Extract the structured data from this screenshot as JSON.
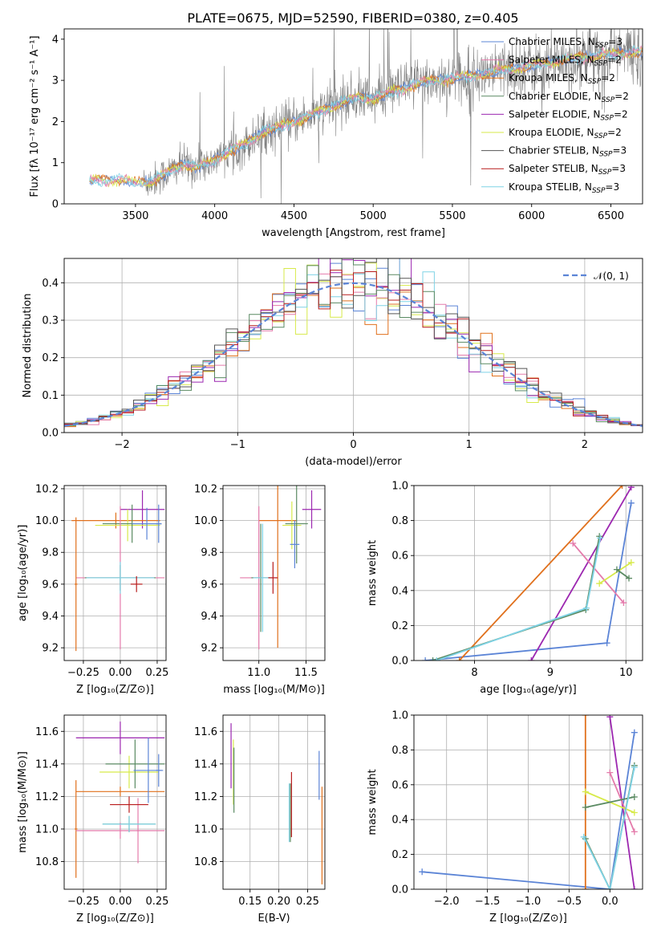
{
  "figure": {
    "title": "PLATE=0675, MJD=52590, FIBERID=0380, z=0.405"
  },
  "chart_data": [
    {
      "id": "spectrum",
      "type": "line",
      "title": "PLATE=0675, MJD=52590, FIBERID=0380, z=0.405",
      "xlabel": "wavelength [Angstrom, rest frame]",
      "ylabel": "Flux [fλ 10⁻¹⁷ erg cm⁻² s⁻¹ A⁻¹]",
      "xlim": [
        3050,
        6700
      ],
      "ylim": [
        0,
        4.25
      ],
      "xticks": [
        3500,
        4000,
        4500,
        5000,
        5500,
        6000,
        6500
      ],
      "yticks": [
        0,
        1,
        2,
        3,
        4
      ],
      "grid": false,
      "legend_position": "top-right",
      "legend": [
        {
          "label": "Chabrier MILES, N",
          "sub": "SSP",
          "suffix": "=3",
          "color": "#5b84d6"
        },
        {
          "label": "Salpeter MILES, N",
          "sub": "SSP",
          "suffix": "=2",
          "color": "#e47bab"
        },
        {
          "label": "Kroupa MILES, N",
          "sub": "SSP",
          "suffix": "=2",
          "color": "#e0701c"
        },
        {
          "label": "Chabrier ELODIE, N",
          "sub": "SSP",
          "suffix": "=2",
          "color": "#5a8a62"
        },
        {
          "label": "Salpeter ELODIE, N",
          "sub": "SSP",
          "suffix": "=2",
          "color": "#9c27b0"
        },
        {
          "label": "Kroupa ELODIE, N",
          "sub": "SSP",
          "suffix": "=2",
          "color": "#d7ea4a"
        },
        {
          "label": "Chabrier STELIB, N",
          "sub": "SSP",
          "suffix": "=3",
          "color": "#555555"
        },
        {
          "label": "Salpeter STELIB, N",
          "sub": "SSP",
          "suffix": "=3",
          "color": "#b81c1c"
        },
        {
          "label": "Kroupa STELIB, N",
          "sub": "SSP",
          "suffix": "=3",
          "color": "#7fd3e6"
        }
      ],
      "data_color": "#808080",
      "data_xrange": [
        3550,
        6700
      ],
      "model_colors": [
        "#5b84d6",
        "#e0701c",
        "#d7ea4a",
        "#e47bab",
        "#7fd3e6"
      ],
      "model_xrange": [
        3210,
        6700
      ],
      "trend": {
        "x": [
          3210,
          3400,
          3500,
          3600,
          3700,
          3800,
          3900,
          4000,
          4100,
          4200,
          4300,
          4400,
          4500,
          4600,
          4700,
          4800,
          4900,
          5000,
          5100,
          5200,
          5300,
          5400,
          5500,
          5600,
          5700,
          5800,
          5900,
          6000,
          6200,
          6400,
          6700
        ],
        "y": [
          0.55,
          0.6,
          0.5,
          0.55,
          0.75,
          0.95,
          0.9,
          1.05,
          1.3,
          1.45,
          1.75,
          1.85,
          2.0,
          2.15,
          2.3,
          2.45,
          2.6,
          2.55,
          2.7,
          2.8,
          2.95,
          3.0,
          3.05,
          3.1,
          3.15,
          3.25,
          3.3,
          3.35,
          3.5,
          3.6,
          3.7
        ]
      }
    },
    {
      "id": "residuals",
      "type": "step",
      "xlabel": "(data-model)/error",
      "ylabel": "Normed distribution",
      "xlim": [
        -2.5,
        2.5
      ],
      "ylim": [
        0,
        0.465
      ],
      "xticks": [
        -2,
        -1,
        0,
        1,
        2
      ],
      "yticks": [
        0.0,
        0.1,
        0.2,
        0.3,
        0.4
      ],
      "grid": true,
      "legend_position": "top-right",
      "legend": [
        {
          "label": "𝒩(0, 1)",
          "color": "#5b84d6"
        }
      ],
      "normal": {
        "mu": 0,
        "sigma": 1
      },
      "series_colors": [
        "#5b84d6",
        "#e0701c",
        "#d7ea4a",
        "#e47bab",
        "#9c27b0",
        "#7fd3e6",
        "#5a8a62",
        "#b81c1c",
        "#555555"
      ],
      "bin_width": 0.1
    },
    {
      "id": "age-vs-Z",
      "type": "errorbar",
      "xlabel": "Z [log₁₀(Z/Z⊙)]",
      "ylabel": "age  [log₁₀(age/yr)]",
      "xlim": [
        -0.38,
        0.31
      ],
      "ylim": [
        9.12,
        10.22
      ],
      "xticks": [
        -0.25,
        0.0,
        0.25
      ],
      "xticklabels": [
        "−0.25",
        "0.00",
        "0.25"
      ],
      "yticks": [
        9.2,
        9.4,
        9.6,
        9.8,
        10.0,
        10.2
      ],
      "yticklabels": [
        "9.2",
        "9.4",
        "9.6",
        "9.8",
        "10.0",
        "10.2"
      ],
      "grid": true,
      "points": [
        {
          "x": 0.15,
          "y": 10.07,
          "xerr": 0.15,
          "yerr": 0.12,
          "color": "#9c27b0"
        },
        {
          "x": -0.03,
          "y": 10.0,
          "xerr": 0.3,
          "yerr": 0.05,
          "color": "#e0701c"
        },
        {
          "x": 0.05,
          "y": 9.97,
          "xerr": 0.22,
          "yerr": 0.1,
          "color": "#d7ea4a"
        },
        {
          "x": 0.08,
          "y": 9.98,
          "xerr": 0.2,
          "yerr": 0.12,
          "color": "#5a8a62"
        },
        {
          "x": 0.0,
          "y": 9.64,
          "xerr": 0.3,
          "yerr": 0.45,
          "color": "#e47bab"
        },
        {
          "x": 0.0,
          "y": 9.64,
          "xerr": 0.24,
          "yerr": 0.08,
          "color": "#5a8a62"
        },
        {
          "x": 0.0,
          "y": 9.64,
          "xerr": 0.23,
          "yerr": 0.1,
          "color": "#7fd3e6"
        },
        {
          "x": 0.18,
          "y": 9.98,
          "xerr": 0.1,
          "yerr": 0.1,
          "color": "#5b84d6"
        },
        {
          "x": 0.26,
          "y": 9.98,
          "xerr": 0.02,
          "yerr": 0.12,
          "color": "#5b84d6"
        },
        {
          "x": 0.11,
          "y": 9.6,
          "xerr": 0.04,
          "yerr": 0.05,
          "color": "#b81c1c"
        },
        {
          "x": -0.3,
          "y": 9.6,
          "xerr": 0.01,
          "yerr": 0.42,
          "color": "#e0701c"
        }
      ]
    },
    {
      "id": "age-vs-mass",
      "type": "errorbar",
      "xlabel": "mass [log₁₀(M/M⊙)]",
      "ylabel": "",
      "xlim": [
        10.62,
        11.7
      ],
      "ylim": [
        9.12,
        10.22
      ],
      "xticks": [
        11.0,
        11.5
      ],
      "xticklabels": [
        "11.0",
        "11.5"
      ],
      "yticks": [
        9.2,
        9.4,
        9.6,
        9.8,
        10.0,
        10.2
      ],
      "yticklabels": [
        "9.2",
        "9.4",
        "9.6",
        "9.8",
        "10.0",
        "10.2"
      ],
      "grid": true,
      "points": [
        {
          "x": 11.56,
          "y": 10.07,
          "xerr": 0.1,
          "yerr": 0.12,
          "color": "#9c27b0"
        },
        {
          "x": 11.2,
          "y": 10.0,
          "xerr": 0.2,
          "yerr": 0.8,
          "color": "#e0701c"
        },
        {
          "x": 11.35,
          "y": 9.97,
          "xerr": 0.1,
          "yerr": 0.15,
          "color": "#d7ea4a"
        },
        {
          "x": 11.4,
          "y": 9.98,
          "xerr": 0.12,
          "yerr": 0.25,
          "color": "#5a8a62"
        },
        {
          "x": 11.0,
          "y": 9.64,
          "xerr": 0.2,
          "yerr": 0.45,
          "color": "#e47bab"
        },
        {
          "x": 11.02,
          "y": 9.64,
          "xerr": 0.1,
          "yerr": 0.34,
          "color": "#5a8a62"
        },
        {
          "x": 11.04,
          "y": 9.64,
          "xerr": 0.1,
          "yerr": 0.34,
          "color": "#7fd3e6"
        },
        {
          "x": 11.15,
          "y": 9.64,
          "xerr": 0.05,
          "yerr": 0.1,
          "color": "#b81c1c"
        },
        {
          "x": 11.38,
          "y": 9.85,
          "xerr": 0.05,
          "yerr": 0.15,
          "color": "#5b84d6"
        }
      ]
    },
    {
      "id": "weight-vs-age",
      "type": "line",
      "xlabel": "age  [log₁₀(age/yr)]",
      "ylabel": "mass weight",
      "xlim": [
        7.2,
        10.22
      ],
      "ylim": [
        0,
        1.0
      ],
      "xticks": [
        8,
        9,
        10
      ],
      "xticklabels": [
        "8",
        "9",
        "10"
      ],
      "yticks": [
        0.0,
        0.2,
        0.4,
        0.6,
        0.8,
        1.0
      ],
      "yticklabels": [
        "0.0",
        "0.2",
        "0.4",
        "0.6",
        "0.8",
        "1.0"
      ],
      "grid": true,
      "series": [
        {
          "x": [
            7.35,
            9.75,
            10.07
          ],
          "y": [
            0.0,
            0.1,
            0.9
          ],
          "color": "#5b84d6"
        },
        {
          "x": [
            7.8,
            9.95
          ],
          "y": [
            0.0,
            1.0
          ],
          "color": "#e0701c"
        },
        {
          "x": [
            8.75,
            10.07
          ],
          "y": [
            0.0,
            0.99
          ],
          "color": "#9c27b0"
        },
        {
          "x": [
            9.3,
            9.97
          ],
          "y": [
            0.67,
            0.33
          ],
          "color": "#e47bab"
        },
        {
          "x": [
            9.65,
            10.07
          ],
          "y": [
            0.44,
            0.56
          ],
          "color": "#d7ea4a"
        },
        {
          "x": [
            9.88,
            10.04
          ],
          "y": [
            0.52,
            0.47
          ],
          "color": "#5a8a62"
        },
        {
          "x": [
            7.45,
            9.47,
            9.65
          ],
          "y": [
            0.0,
            0.29,
            0.71
          ],
          "color": "#5a8a62"
        },
        {
          "x": [
            7.5,
            9.48,
            9.66
          ],
          "y": [
            0.0,
            0.3,
            0.7
          ],
          "color": "#7fd3e6"
        }
      ]
    },
    {
      "id": "mass-vs-Z",
      "type": "errorbar",
      "xlabel": "Z [log₁₀(Z/Z⊙)]",
      "ylabel": "mass [log₁₀(M/M⊙)]",
      "xlim": [
        -0.38,
        0.31
      ],
      "ylim": [
        10.63,
        11.7
      ],
      "xticks": [
        -0.25,
        0.0,
        0.25
      ],
      "xticklabels": [
        "−0.25",
        "0.00",
        "0.25"
      ],
      "yticks": [
        10.8,
        11.0,
        11.2,
        11.4,
        11.6
      ],
      "yticklabels": [
        "10.8",
        "11.0",
        "11.2",
        "11.4",
        "11.6"
      ],
      "grid": true,
      "points": [
        {
          "x": 0.0,
          "y": 11.56,
          "xerr": 0.3,
          "yerr": 0.1,
          "color": "#9c27b0"
        },
        {
          "x": 0.0,
          "y": 11.23,
          "xerr": 0.3,
          "yerr": 0.03,
          "color": "#e0701c"
        },
        {
          "x": -0.3,
          "y": 11.0,
          "xerr": 0.01,
          "yerr": 0.3,
          "color": "#e0701c"
        },
        {
          "x": 0.06,
          "y": 11.35,
          "xerr": 0.2,
          "yerr": 0.1,
          "color": "#d7ea4a"
        },
        {
          "x": 0.1,
          "y": 11.4,
          "xerr": 0.2,
          "yerr": 0.15,
          "color": "#5a8a62"
        },
        {
          "x": 0.0,
          "y": 10.99,
          "xerr": 0.3,
          "yerr": 0.05,
          "color": "#e47bab"
        },
        {
          "x": 0.12,
          "y": 10.99,
          "xerr": 0.01,
          "yerr": 0.2,
          "color": "#e47bab"
        },
        {
          "x": 0.06,
          "y": 11.03,
          "xerr": 0.18,
          "yerr": 0.05,
          "color": "#5a8a62"
        },
        {
          "x": 0.06,
          "y": 11.03,
          "xerr": 0.18,
          "yerr": 0.05,
          "color": "#7fd3e6"
        },
        {
          "x": 0.06,
          "y": 11.15,
          "xerr": 0.13,
          "yerr": 0.05,
          "color": "#b81c1c"
        },
        {
          "x": 0.19,
          "y": 11.36,
          "xerr": 0.1,
          "yerr": 0.2,
          "color": "#5b84d6"
        },
        {
          "x": 0.26,
          "y": 11.36,
          "xerr": 0.02,
          "yerr": 0.1,
          "color": "#5b84d6"
        }
      ]
    },
    {
      "id": "mass-vs-EBV",
      "type": "errorbar",
      "xlabel": "E(B-V)",
      "ylabel": "",
      "xlim": [
        0.103,
        0.28
      ],
      "ylim": [
        10.63,
        11.7
      ],
      "xticks": [
        0.15,
        0.2,
        0.25
      ],
      "xticklabels": [
        "0.15",
        "0.20",
        "0.25"
      ],
      "yticks": [
        10.8,
        11.0,
        11.2,
        11.4,
        11.6
      ],
      "yticklabels": [
        "10.8",
        "11.0",
        "11.2",
        "11.4",
        "11.6"
      ],
      "grid": true,
      "points": [
        {
          "x": 0.117,
          "y": 11.45,
          "xerr": 0.0,
          "yerr": 0.2,
          "color": "#9c27b0"
        },
        {
          "x": 0.121,
          "y": 11.35,
          "xerr": 0.0,
          "yerr": 0.2,
          "color": "#d7ea4a"
        },
        {
          "x": 0.122,
          "y": 11.3,
          "xerr": 0.0,
          "yerr": 0.2,
          "color": "#5a8a62"
        },
        {
          "x": 0.218,
          "y": 11.1,
          "xerr": 0.0,
          "yerr": 0.18,
          "color": "#7fd3e6"
        },
        {
          "x": 0.22,
          "y": 11.1,
          "xerr": 0.0,
          "yerr": 0.18,
          "color": "#5a8a62"
        },
        {
          "x": 0.222,
          "y": 11.15,
          "xerr": 0.0,
          "yerr": 0.2,
          "color": "#b81c1c"
        },
        {
          "x": 0.27,
          "y": 11.33,
          "xerr": 0.0,
          "yerr": 0.15,
          "color": "#5b84d6"
        },
        {
          "x": 0.275,
          "y": 10.96,
          "xerr": 0.0,
          "yerr": 0.3,
          "color": "#e0701c"
        }
      ]
    },
    {
      "id": "weight-vs-Z",
      "type": "line",
      "xlabel": "Z [log₁₀(Z/Z⊙)]",
      "ylabel": "mass weight",
      "xlim": [
        -2.4,
        0.4
      ],
      "ylim": [
        0,
        1.0
      ],
      "xticks": [
        -2.0,
        -1.5,
        -1.0,
        -0.5,
        0.0
      ],
      "xticklabels": [
        "−2.0",
        "−1.5",
        "−1.0",
        "−0.5",
        "0.0"
      ],
      "yticks": [
        0.0,
        0.2,
        0.4,
        0.6,
        0.8,
        1.0
      ],
      "yticklabels": [
        "0.0",
        "0.2",
        "0.4",
        "0.6",
        "0.8",
        "1.0"
      ],
      "grid": true,
      "series": [
        {
          "x": [
            -2.3,
            0.0,
            0.3
          ],
          "y": [
            0.1,
            0.0,
            0.9
          ],
          "color": "#5b84d6"
        },
        {
          "x": [
            -0.3,
            -0.3
          ],
          "y": [
            0.0,
            1.0
          ],
          "color": "#e0701c"
        },
        {
          "x": [
            0.0,
            0.3
          ],
          "y": [
            0.99,
            0.0
          ],
          "color": "#9c27b0"
        },
        {
          "x": [
            0.0,
            0.3
          ],
          "y": [
            0.67,
            0.33
          ],
          "color": "#e47bab"
        },
        {
          "x": [
            -0.3,
            0.3
          ],
          "y": [
            0.56,
            0.44
          ],
          "color": "#d7ea4a"
        },
        {
          "x": [
            -0.3,
            0.3
          ],
          "y": [
            0.47,
            0.53
          ],
          "color": "#5a8a62"
        },
        {
          "x": [
            -0.3,
            0.0,
            0.3
          ],
          "y": [
            0.29,
            0.0,
            0.71
          ],
          "color": "#5a8a62"
        },
        {
          "x": [
            -0.32,
            0.0,
            0.3
          ],
          "y": [
            0.3,
            0.0,
            0.7
          ],
          "color": "#7fd3e6"
        }
      ]
    }
  ]
}
